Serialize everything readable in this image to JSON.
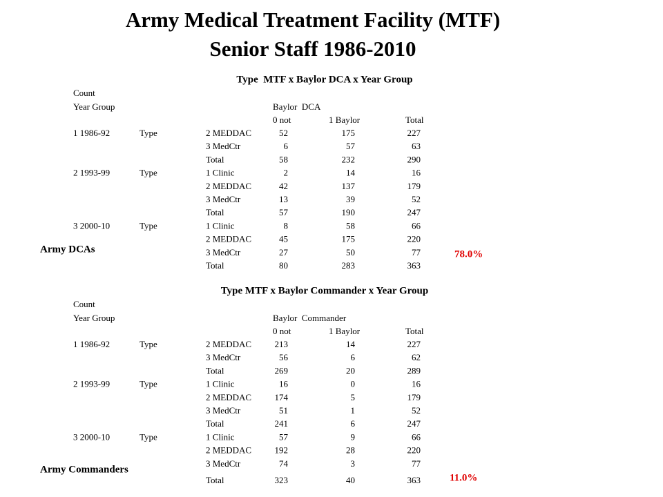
{
  "title_lines": [
    "Army Medical Treatment Facility (MTF)",
    "Senior Staff 1986-2010"
  ],
  "tables": [
    {
      "caption": "Type  MTF x Baylor DCA x Year Group",
      "count_label": "Count",
      "year_group_label": "Year Group",
      "group_header": "Baylor  DCA",
      "col_headers": [
        "0 not",
        "1 Baylor",
        "Total"
      ],
      "rows": [
        [
          "1 1986-92",
          "Type",
          "2 MEDDAC",
          52,
          175,
          227
        ],
        [
          null,
          null,
          "3 MedCtr",
          6,
          57,
          63
        ],
        [
          null,
          null,
          "Total",
          58,
          232,
          290
        ],
        [
          "2 1993-99",
          "Type",
          "1 Clinic",
          2,
          14,
          16
        ],
        [
          null,
          null,
          "2 MEDDAC",
          42,
          137,
          179
        ],
        [
          null,
          null,
          "3 MedCtr",
          13,
          39,
          52
        ],
        [
          null,
          null,
          "Total",
          57,
          190,
          247
        ],
        [
          "3 2000-10",
          "Type",
          "1 Clinic",
          8,
          58,
          66
        ],
        [
          null,
          null,
          "2 MEDDAC",
          45,
          175,
          220
        ],
        [
          null,
          null,
          "3 MedCtr",
          27,
          50,
          77
        ],
        [
          null,
          null,
          "Total",
          80,
          283,
          363
        ]
      ],
      "side_label": "Army DCAs",
      "percent": "78.0%"
    },
    {
      "caption": "Type MTF x Baylor Commander x Year Group",
      "count_label": "Count",
      "year_group_label": "Year Group",
      "group_header": "Baylor  Commander",
      "col_headers": [
        "0 not",
        "1 Baylor",
        "Total"
      ],
      "rows": [
        [
          "1 1986-92",
          "Type",
          "2 MEDDAC",
          213,
          14,
          227
        ],
        [
          null,
          null,
          "3 MedCtr",
          56,
          6,
          62
        ],
        [
          null,
          null,
          "Total",
          269,
          20,
          289
        ],
        [
          "2 1993-99",
          "Type",
          "1 Clinic",
          16,
          0,
          16
        ],
        [
          null,
          null,
          "2 MEDDAC",
          174,
          5,
          179
        ],
        [
          null,
          null,
          "3 MedCtr",
          51,
          1,
          52
        ],
        [
          null,
          null,
          "Total",
          241,
          6,
          247
        ],
        [
          "3 2000-10",
          "Type",
          "1 Clinic",
          57,
          9,
          66
        ],
        [
          null,
          null,
          "2 MEDDAC",
          192,
          28,
          220
        ],
        [
          null,
          null,
          "3 MedCtr",
          74,
          3,
          77
        ],
        [
          null,
          null,
          "Total",
          323,
          40,
          363
        ]
      ],
      "side_label": "Army Commanders",
      "percent": "11.0%"
    }
  ]
}
